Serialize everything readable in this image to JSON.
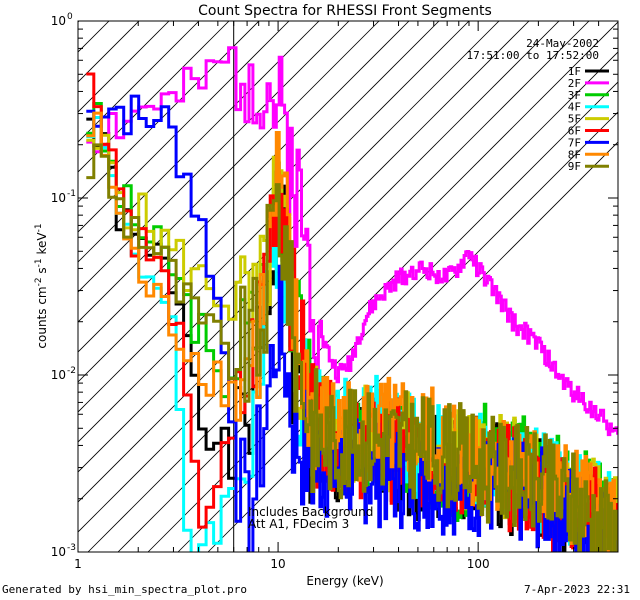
{
  "chart_data": {
    "type": "line",
    "title": "Count Spectra for RHESSI Front Segments",
    "xlabel": "Energy (keV)",
    "ylabel_main": "counts cm",
    "ylabel_exp1": "-2",
    "ylabel_mid": " s",
    "ylabel_exp2": "-1",
    "ylabel_tail": " keV",
    "ylabel_exp3": "-1",
    "xscale": "log",
    "yscale": "log",
    "xlim": [
      1,
      500
    ],
    "ylim": [
      0.001,
      1.0
    ],
    "xticks": [
      {
        "value": 1,
        "label": "1"
      },
      {
        "value": 10,
        "label": "10"
      },
      {
        "value": 100,
        "label": "100"
      }
    ],
    "yticks": [
      {
        "value": 1.0,
        "base": "10",
        "exp": "0"
      },
      {
        "value": 0.1,
        "base": "10",
        "exp": "-1"
      },
      {
        "value": 0.01,
        "base": "10",
        "exp": "-2"
      },
      {
        "value": 0.001,
        "base": "10",
        "exp": "-3"
      }
    ],
    "legend": {
      "date": "24-May-2002",
      "time_range": "17:51:00 to 17:52:00",
      "position": "top-right"
    },
    "annotations": {
      "line1": "Includes Background",
      "line2": "Att A1, FDecim 3"
    },
    "excluded_region_upper_kev": 6.0,
    "series": [
      {
        "name": "1F",
        "color": "#000000",
        "lo_seed": 1,
        "points": [
          [
            1.1,
            0.3
          ],
          [
            1.3,
            0.2
          ],
          [
            1.5,
            0.12
          ],
          [
            1.7,
            0.07
          ],
          [
            2,
            0.05
          ],
          [
            2.5,
            0.045
          ],
          [
            3,
            0.035
          ],
          [
            3.5,
            0.02
          ],
          [
            4,
            0.008
          ],
          [
            5,
            0.004
          ],
          [
            6,
            0.003
          ],
          [
            8,
            0.01
          ],
          [
            10,
            0.09
          ],
          [
            11,
            0.05
          ],
          [
            12,
            0.01
          ],
          [
            15,
            0.004
          ],
          [
            20,
            0.003
          ],
          [
            30,
            0.004
          ],
          [
            50,
            0.003
          ],
          [
            80,
            0.003
          ],
          [
            100,
            0.003
          ],
          [
            150,
            0.0025
          ],
          [
            200,
            0.0022
          ],
          [
            300,
            0.0018
          ],
          [
            400,
            0.0014
          ],
          [
            500,
            0.001
          ]
        ]
      },
      {
        "name": "2F",
        "color": "#ff00ff",
        "lo_seed": 2,
        "points": [
          [
            1.1,
            0.22
          ],
          [
            1.3,
            0.24
          ],
          [
            1.5,
            0.26
          ],
          [
            1.7,
            0.28
          ],
          [
            2,
            0.3
          ],
          [
            2.5,
            0.35
          ],
          [
            3,
            0.32
          ],
          [
            3.5,
            0.38
          ],
          [
            4,
            0.42
          ],
          [
            4.5,
            0.45
          ],
          [
            5,
            0.52
          ],
          [
            6,
            0.6
          ],
          [
            7,
            0.62
          ],
          [
            8,
            0.55
          ],
          [
            9,
            0.42
          ],
          [
            10,
            0.3
          ],
          [
            11,
            0.22
          ],
          [
            12,
            0.15
          ],
          [
            13,
            0.08
          ],
          [
            15,
            0.03
          ],
          [
            17,
            0.015
          ],
          [
            20,
            0.01
          ],
          [
            23,
            0.012
          ],
          [
            27,
            0.02
          ],
          [
            30,
            0.025
          ],
          [
            35,
            0.03
          ],
          [
            40,
            0.035
          ],
          [
            50,
            0.04
          ],
          [
            60,
            0.038
          ],
          [
            70,
            0.035
          ],
          [
            80,
            0.04
          ],
          [
            90,
            0.05
          ],
          [
            100,
            0.04
          ],
          [
            120,
            0.03
          ],
          [
            150,
            0.02
          ],
          [
            200,
            0.015
          ],
          [
            250,
            0.01
          ],
          [
            300,
            0.008
          ],
          [
            400,
            0.006
          ],
          [
            500,
            0.0045
          ]
        ]
      },
      {
        "name": "3F",
        "color": "#00cc00",
        "lo_seed": 3,
        "points": [
          [
            1.1,
            0.3
          ],
          [
            1.3,
            0.24
          ],
          [
            1.5,
            0.14
          ],
          [
            1.7,
            0.09
          ],
          [
            2,
            0.07
          ],
          [
            2.5,
            0.05
          ],
          [
            3,
            0.04
          ],
          [
            3.5,
            0.025
          ],
          [
            4,
            0.02
          ],
          [
            5,
            0.008
          ],
          [
            6,
            0.012
          ],
          [
            8,
            0.02
          ],
          [
            10,
            0.15
          ],
          [
            11,
            0.07
          ],
          [
            12,
            0.02
          ],
          [
            15,
            0.006
          ],
          [
            20,
            0.004
          ],
          [
            30,
            0.004
          ],
          [
            50,
            0.0035
          ],
          [
            80,
            0.003
          ],
          [
            100,
            0.0035
          ],
          [
            150,
            0.003
          ],
          [
            200,
            0.0028
          ],
          [
            300,
            0.0022
          ],
          [
            400,
            0.0018
          ],
          [
            500,
            0.0015
          ]
        ]
      },
      {
        "name": "4F",
        "color": "#00ffff",
        "lo_seed": 4,
        "points": [
          [
            1.1,
            0.34
          ],
          [
            1.3,
            0.22
          ],
          [
            1.5,
            0.12
          ],
          [
            1.7,
            0.08
          ],
          [
            2,
            0.05
          ],
          [
            2.5,
            0.03
          ],
          [
            3,
            0.015
          ],
          [
            3.3,
            0.004
          ],
          [
            3.6,
            0.001
          ],
          [
            6,
            0.002
          ],
          [
            8,
            0.008
          ],
          [
            10,
            0.08
          ],
          [
            11,
            0.04
          ],
          [
            12,
            0.012
          ],
          [
            15,
            0.006
          ],
          [
            20,
            0.005
          ],
          [
            30,
            0.005
          ],
          [
            50,
            0.004
          ],
          [
            80,
            0.0035
          ],
          [
            100,
            0.003
          ],
          [
            150,
            0.0028
          ],
          [
            200,
            0.0025
          ],
          [
            300,
            0.002
          ],
          [
            400,
            0.0016
          ],
          [
            500,
            0.0013
          ]
        ]
      },
      {
        "name": "5F",
        "color": "#cccc00",
        "lo_seed": 5,
        "points": [
          [
            1.1,
            0.15
          ],
          [
            1.3,
            0.2
          ],
          [
            1.5,
            0.15
          ],
          [
            1.7,
            0.1
          ],
          [
            2,
            0.08
          ],
          [
            2.5,
            0.06
          ],
          [
            3,
            0.05
          ],
          [
            3.5,
            0.04
          ],
          [
            4,
            0.035
          ],
          [
            5,
            0.03
          ],
          [
            6,
            0.025
          ],
          [
            8,
            0.02
          ],
          [
            10,
            0.11
          ],
          [
            11,
            0.05
          ],
          [
            12,
            0.015
          ],
          [
            15,
            0.006
          ],
          [
            20,
            0.004
          ],
          [
            30,
            0.0045
          ],
          [
            50,
            0.004
          ],
          [
            80,
            0.0035
          ],
          [
            100,
            0.003
          ],
          [
            150,
            0.003
          ],
          [
            200,
            0.0026
          ],
          [
            300,
            0.002
          ],
          [
            400,
            0.0017
          ],
          [
            500,
            0.0013
          ]
        ]
      },
      {
        "name": "6F",
        "color": "#ff0000",
        "lo_seed": 6,
        "points": [
          [
            1.1,
            0.46
          ],
          [
            1.3,
            0.35
          ],
          [
            1.5,
            0.18
          ],
          [
            1.7,
            0.09
          ],
          [
            2,
            0.06
          ],
          [
            2.5,
            0.04
          ],
          [
            3,
            0.025
          ],
          [
            3.3,
            0.012
          ],
          [
            3.6,
            0.005
          ],
          [
            4,
            0.0015
          ],
          [
            6,
            0.004
          ],
          [
            8,
            0.02
          ],
          [
            10,
            0.16
          ],
          [
            11,
            0.08
          ],
          [
            12,
            0.02
          ],
          [
            15,
            0.006
          ],
          [
            20,
            0.004
          ],
          [
            30,
            0.004
          ],
          [
            50,
            0.0035
          ],
          [
            80,
            0.003
          ],
          [
            100,
            0.003
          ],
          [
            150,
            0.0026
          ],
          [
            200,
            0.0022
          ],
          [
            300,
            0.0018
          ],
          [
            400,
            0.0015
          ],
          [
            500,
            0.0012
          ]
        ]
      },
      {
        "name": "7F",
        "color": "#0000ff",
        "lo_seed": 7,
        "points": [
          [
            1.1,
            0.28
          ],
          [
            1.3,
            0.35
          ],
          [
            1.5,
            0.33
          ],
          [
            1.7,
            0.32
          ],
          [
            2,
            0.28
          ],
          [
            2.2,
            0.25
          ],
          [
            2.5,
            0.32
          ],
          [
            3,
            0.22
          ],
          [
            3.5,
            0.14
          ],
          [
            4,
            0.08
          ],
          [
            4.5,
            0.05
          ],
          [
            5,
            0.025
          ],
          [
            5.5,
            0.012
          ],
          [
            6,
            0.006
          ],
          [
            6.5,
            0.0025
          ],
          [
            7,
            0.0012
          ],
          [
            8,
            0.003
          ],
          [
            10,
            0.02
          ],
          [
            11,
            0.012
          ],
          [
            12,
            0.005
          ],
          [
            15,
            0.003
          ],
          [
            20,
            0.003
          ],
          [
            30,
            0.0028
          ],
          [
            50,
            0.0026
          ],
          [
            80,
            0.0025
          ],
          [
            100,
            0.0024
          ],
          [
            150,
            0.0022
          ],
          [
            200,
            0.002
          ],
          [
            300,
            0.0016
          ],
          [
            400,
            0.0013
          ],
          [
            500,
            0.001
          ]
        ]
      },
      {
        "name": "8F",
        "color": "#ff8800",
        "lo_seed": 8,
        "points": [
          [
            1.1,
            0.25
          ],
          [
            1.3,
            0.22
          ],
          [
            1.5,
            0.12
          ],
          [
            1.7,
            0.06
          ],
          [
            2,
            0.04
          ],
          [
            2.5,
            0.025
          ],
          [
            3,
            0.02
          ],
          [
            3.5,
            0.015
          ],
          [
            4,
            0.012
          ],
          [
            5,
            0.01
          ],
          [
            6,
            0.008
          ],
          [
            8,
            0.015
          ],
          [
            10,
            0.12
          ],
          [
            11,
            0.06
          ],
          [
            12,
            0.018
          ],
          [
            15,
            0.006
          ],
          [
            20,
            0.005
          ],
          [
            30,
            0.005
          ],
          [
            50,
            0.0045
          ],
          [
            80,
            0.004
          ],
          [
            100,
            0.0035
          ],
          [
            150,
            0.003
          ],
          [
            200,
            0.0026
          ],
          [
            300,
            0.002
          ],
          [
            400,
            0.0016
          ],
          [
            500,
            0.0013
          ]
        ]
      },
      {
        "name": "9F",
        "color": "#808000",
        "lo_seed": 9,
        "points": [
          [
            1.1,
            0.15
          ],
          [
            1.3,
            0.18
          ],
          [
            1.5,
            0.11
          ],
          [
            1.7,
            0.08
          ],
          [
            2,
            0.07
          ],
          [
            2.5,
            0.05
          ],
          [
            3,
            0.035
          ],
          [
            3.5,
            0.025
          ],
          [
            4,
            0.02
          ],
          [
            5,
            0.015
          ],
          [
            6,
            0.012
          ],
          [
            8,
            0.015
          ],
          [
            10,
            0.1
          ],
          [
            11,
            0.05
          ],
          [
            12,
            0.015
          ],
          [
            15,
            0.005
          ],
          [
            20,
            0.004
          ],
          [
            30,
            0.0045
          ],
          [
            50,
            0.004
          ],
          [
            80,
            0.0035
          ],
          [
            100,
            0.003
          ],
          [
            150,
            0.0028
          ],
          [
            200,
            0.0024
          ],
          [
            300,
            0.0019
          ],
          [
            400,
            0.0015
          ],
          [
            500,
            0.0012
          ]
        ]
      }
    ]
  },
  "footer": {
    "generated_by": "Generated by hsi_min_spectra_plot.pro",
    "timestamp": "7-Apr-2023 22:31"
  }
}
